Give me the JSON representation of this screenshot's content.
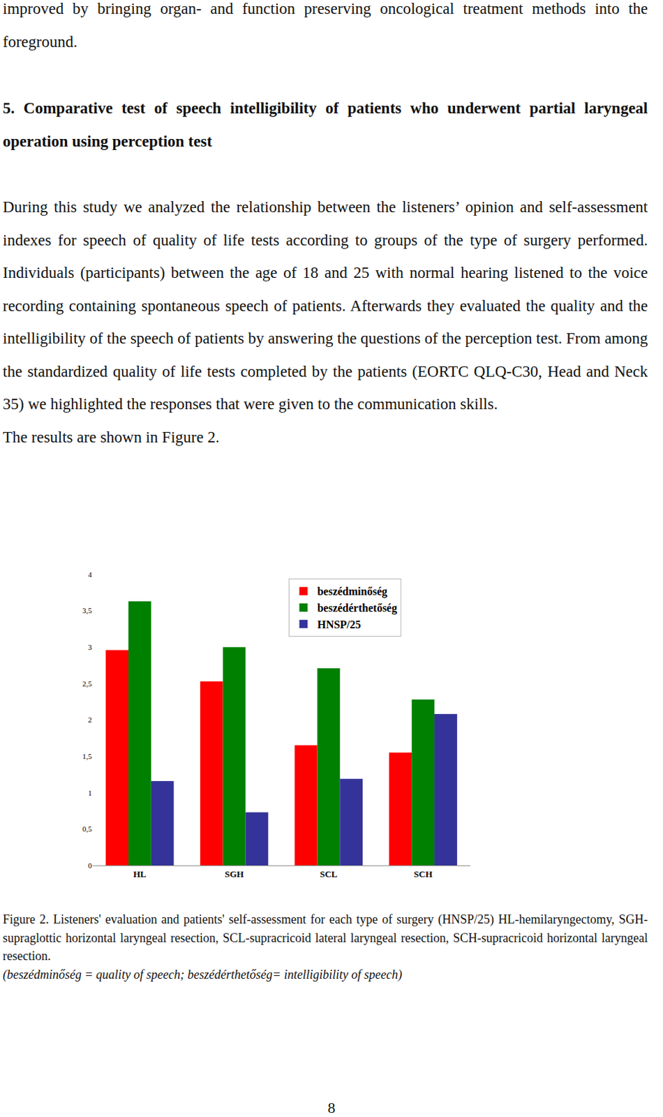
{
  "page": {
    "intro": "improved by bringing organ- and function preserving oncological treatment methods into the foreground.",
    "heading": "5. Comparative test of speech intelligibility of patients who underwent partial laryngeal operation using perception test",
    "paragraph": "During this study we analyzed the relationship between the listeners’ opinion and self-assessment indexes for speech of quality of life tests according to groups of the type of surgery performed. Individuals (participants) between the age of 18 and 25 with normal hearing listened to the voice recording containing spontaneous speech of patients. Afterwards they evaluated the quality and the intelligibility of the speech of patients by answering the questions of the perception test. From among the standardized quality of life tests completed by the patients (EORTC QLQ-C30, Head and Neck 35) we highlighted the responses that were given to the communication skills.",
    "results_line": "The results are shown in Figure 2.",
    "caption": "Figure 2. Listeners' evaluation and patients' self-assessment for each type of surgery (HNSP/25) HL-hemilaryngectomy, SGH-supraglottic horizontal laryngeal resection, SCL-supracricoid lateral laryngeal resection, SCH-supracricoid horizontal laryngeal resection.",
    "caption_note": "(beszédminőség = quality of speech; beszédérthetőség= intelligibility of speech)",
    "page_number": "8"
  },
  "chart_data": {
    "type": "bar",
    "categories": [
      "HL",
      "SGH",
      "SCL",
      "SCH"
    ],
    "series": [
      {
        "name": "beszédminőség",
        "color": "#ff0000",
        "values": [
          2.96,
          2.53,
          1.65,
          1.55
        ]
      },
      {
        "name": "beszédérthetőség",
        "color": "#008000",
        "values": [
          3.63,
          3.0,
          2.71,
          2.28
        ]
      },
      {
        "name": "HNSP/25",
        "color": "#333399",
        "values": [
          1.16,
          0.73,
          1.19,
          2.08
        ]
      }
    ],
    "ylim": [
      0,
      4
    ],
    "yticks": [
      0,
      {
        "value": 0.5,
        "label": "0,5"
      },
      1,
      {
        "value": 1.5,
        "label": "1,5"
      },
      2,
      {
        "value": 2.5,
        "label": "2,5"
      },
      3,
      {
        "value": 3.5,
        "label": "3,5"
      },
      4
    ],
    "grid": false,
    "legend": "top right",
    "data_labels": false
  }
}
